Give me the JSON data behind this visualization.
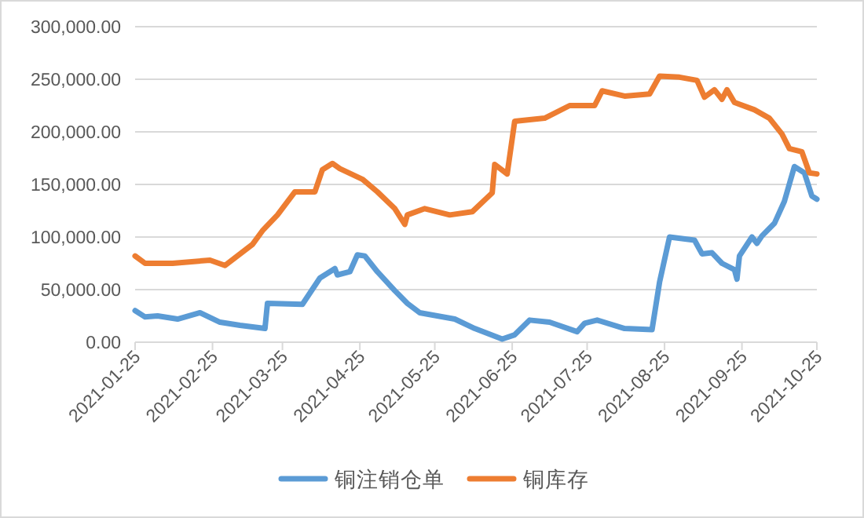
{
  "chart_data": {
    "type": "line",
    "legend": "bottom",
    "grid": "y",
    "marker": "none",
    "line_style": "solid",
    "ylim": [
      0,
      300000
    ],
    "yticks": [
      {
        "value": 0,
        "label": "0.00"
      },
      {
        "value": 50000,
        "label": "50,000.00"
      },
      {
        "value": 100000,
        "label": "100,000.00"
      },
      {
        "value": 150000,
        "label": "150,000.00"
      },
      {
        "value": 200000,
        "label": "200,000.00"
      },
      {
        "value": 250000,
        "label": "250,000.00"
      },
      {
        "value": 300000,
        "label": "300,000.00"
      }
    ],
    "xlim": [
      "2021-01-25",
      "2021-10-25"
    ],
    "xticks": [
      "2021-01-25",
      "2021-02-25",
      "2021-03-25",
      "2021-04-25",
      "2021-05-25",
      "2021-06-25",
      "2021-07-25",
      "2021-08-25",
      "2021-09-25",
      "2021-10-25"
    ],
    "series": [
      {
        "name": "铜注销仓单",
        "color": "#5b9bd5",
        "x": [
          "2021-01-25",
          "2021-01-29",
          "2021-02-03",
          "2021-02-11",
          "2021-02-20",
          "2021-02-28",
          "2021-03-08",
          "2021-03-18",
          "2021-03-19",
          "2021-04-02",
          "2021-04-09",
          "2021-04-15",
          "2021-04-16",
          "2021-04-21",
          "2021-04-24",
          "2021-04-27",
          "2021-05-02",
          "2021-05-09",
          "2021-05-14",
          "2021-05-19",
          "2021-06-02",
          "2021-06-10",
          "2021-06-21",
          "2021-06-26",
          "2021-07-02",
          "2021-07-10",
          "2021-07-21",
          "2021-07-24",
          "2021-07-29",
          "2021-08-09",
          "2021-08-20",
          "2021-08-23",
          "2021-08-27",
          "2021-09-06",
          "2021-09-09",
          "2021-09-13",
          "2021-09-17",
          "2021-09-22",
          "2021-09-23",
          "2021-09-24",
          "2021-09-29",
          "2021-10-01",
          "2021-10-03",
          "2021-10-08",
          "2021-10-12",
          "2021-10-16",
          "2021-10-20",
          "2021-10-23",
          "2021-10-25"
        ],
        "values": [
          30000,
          24000,
          25000,
          22000,
          28000,
          19000,
          16000,
          13000,
          37000,
          36000,
          61000,
          70000,
          64000,
          67000,
          83000,
          82000,
          67000,
          49000,
          37000,
          28000,
          22000,
          13000,
          3000,
          7000,
          21000,
          19000,
          10000,
          18000,
          21000,
          13000,
          12000,
          57000,
          100000,
          97000,
          84000,
          85000,
          75000,
          69000,
          60000,
          82000,
          100000,
          94000,
          101000,
          113000,
          134000,
          167000,
          161000,
          139000,
          136000
        ]
      },
      {
        "name": "铜库存",
        "color": "#ed7d31",
        "x": [
          "2021-01-25",
          "2021-01-29",
          "2021-02-09",
          "2021-02-24",
          "2021-03-02",
          "2021-03-13",
          "2021-03-17",
          "2021-03-23",
          "2021-03-30",
          "2021-04-07",
          "2021-04-10",
          "2021-04-14",
          "2021-04-17",
          "2021-04-26",
          "2021-05-02",
          "2021-05-09",
          "2021-05-13",
          "2021-05-14",
          "2021-05-21",
          "2021-05-31",
          "2021-06-09",
          "2021-06-17",
          "2021-06-18",
          "2021-06-23",
          "2021-06-26",
          "2021-07-08",
          "2021-07-18",
          "2021-07-28",
          "2021-07-31",
          "2021-08-09",
          "2021-08-19",
          "2021-08-23",
          "2021-08-31",
          "2021-09-07",
          "2021-09-10",
          "2021-09-14",
          "2021-09-17",
          "2021-09-19",
          "2021-09-22",
          "2021-09-30",
          "2021-10-06",
          "2021-10-11",
          "2021-10-14",
          "2021-10-19",
          "2021-10-22",
          "2021-10-25"
        ],
        "values": [
          82000,
          75000,
          75000,
          78000,
          73000,
          93000,
          106000,
          121000,
          143000,
          143000,
          164000,
          170000,
          165000,
          155000,
          143000,
          127000,
          112000,
          121000,
          127000,
          121000,
          124000,
          142000,
          169000,
          160000,
          210000,
          213000,
          225000,
          225000,
          239000,
          234000,
          236000,
          253000,
          252000,
          249000,
          233000,
          240000,
          231000,
          240000,
          228000,
          221000,
          213000,
          198000,
          184000,
          181000,
          161000,
          160000
        ]
      }
    ]
  }
}
